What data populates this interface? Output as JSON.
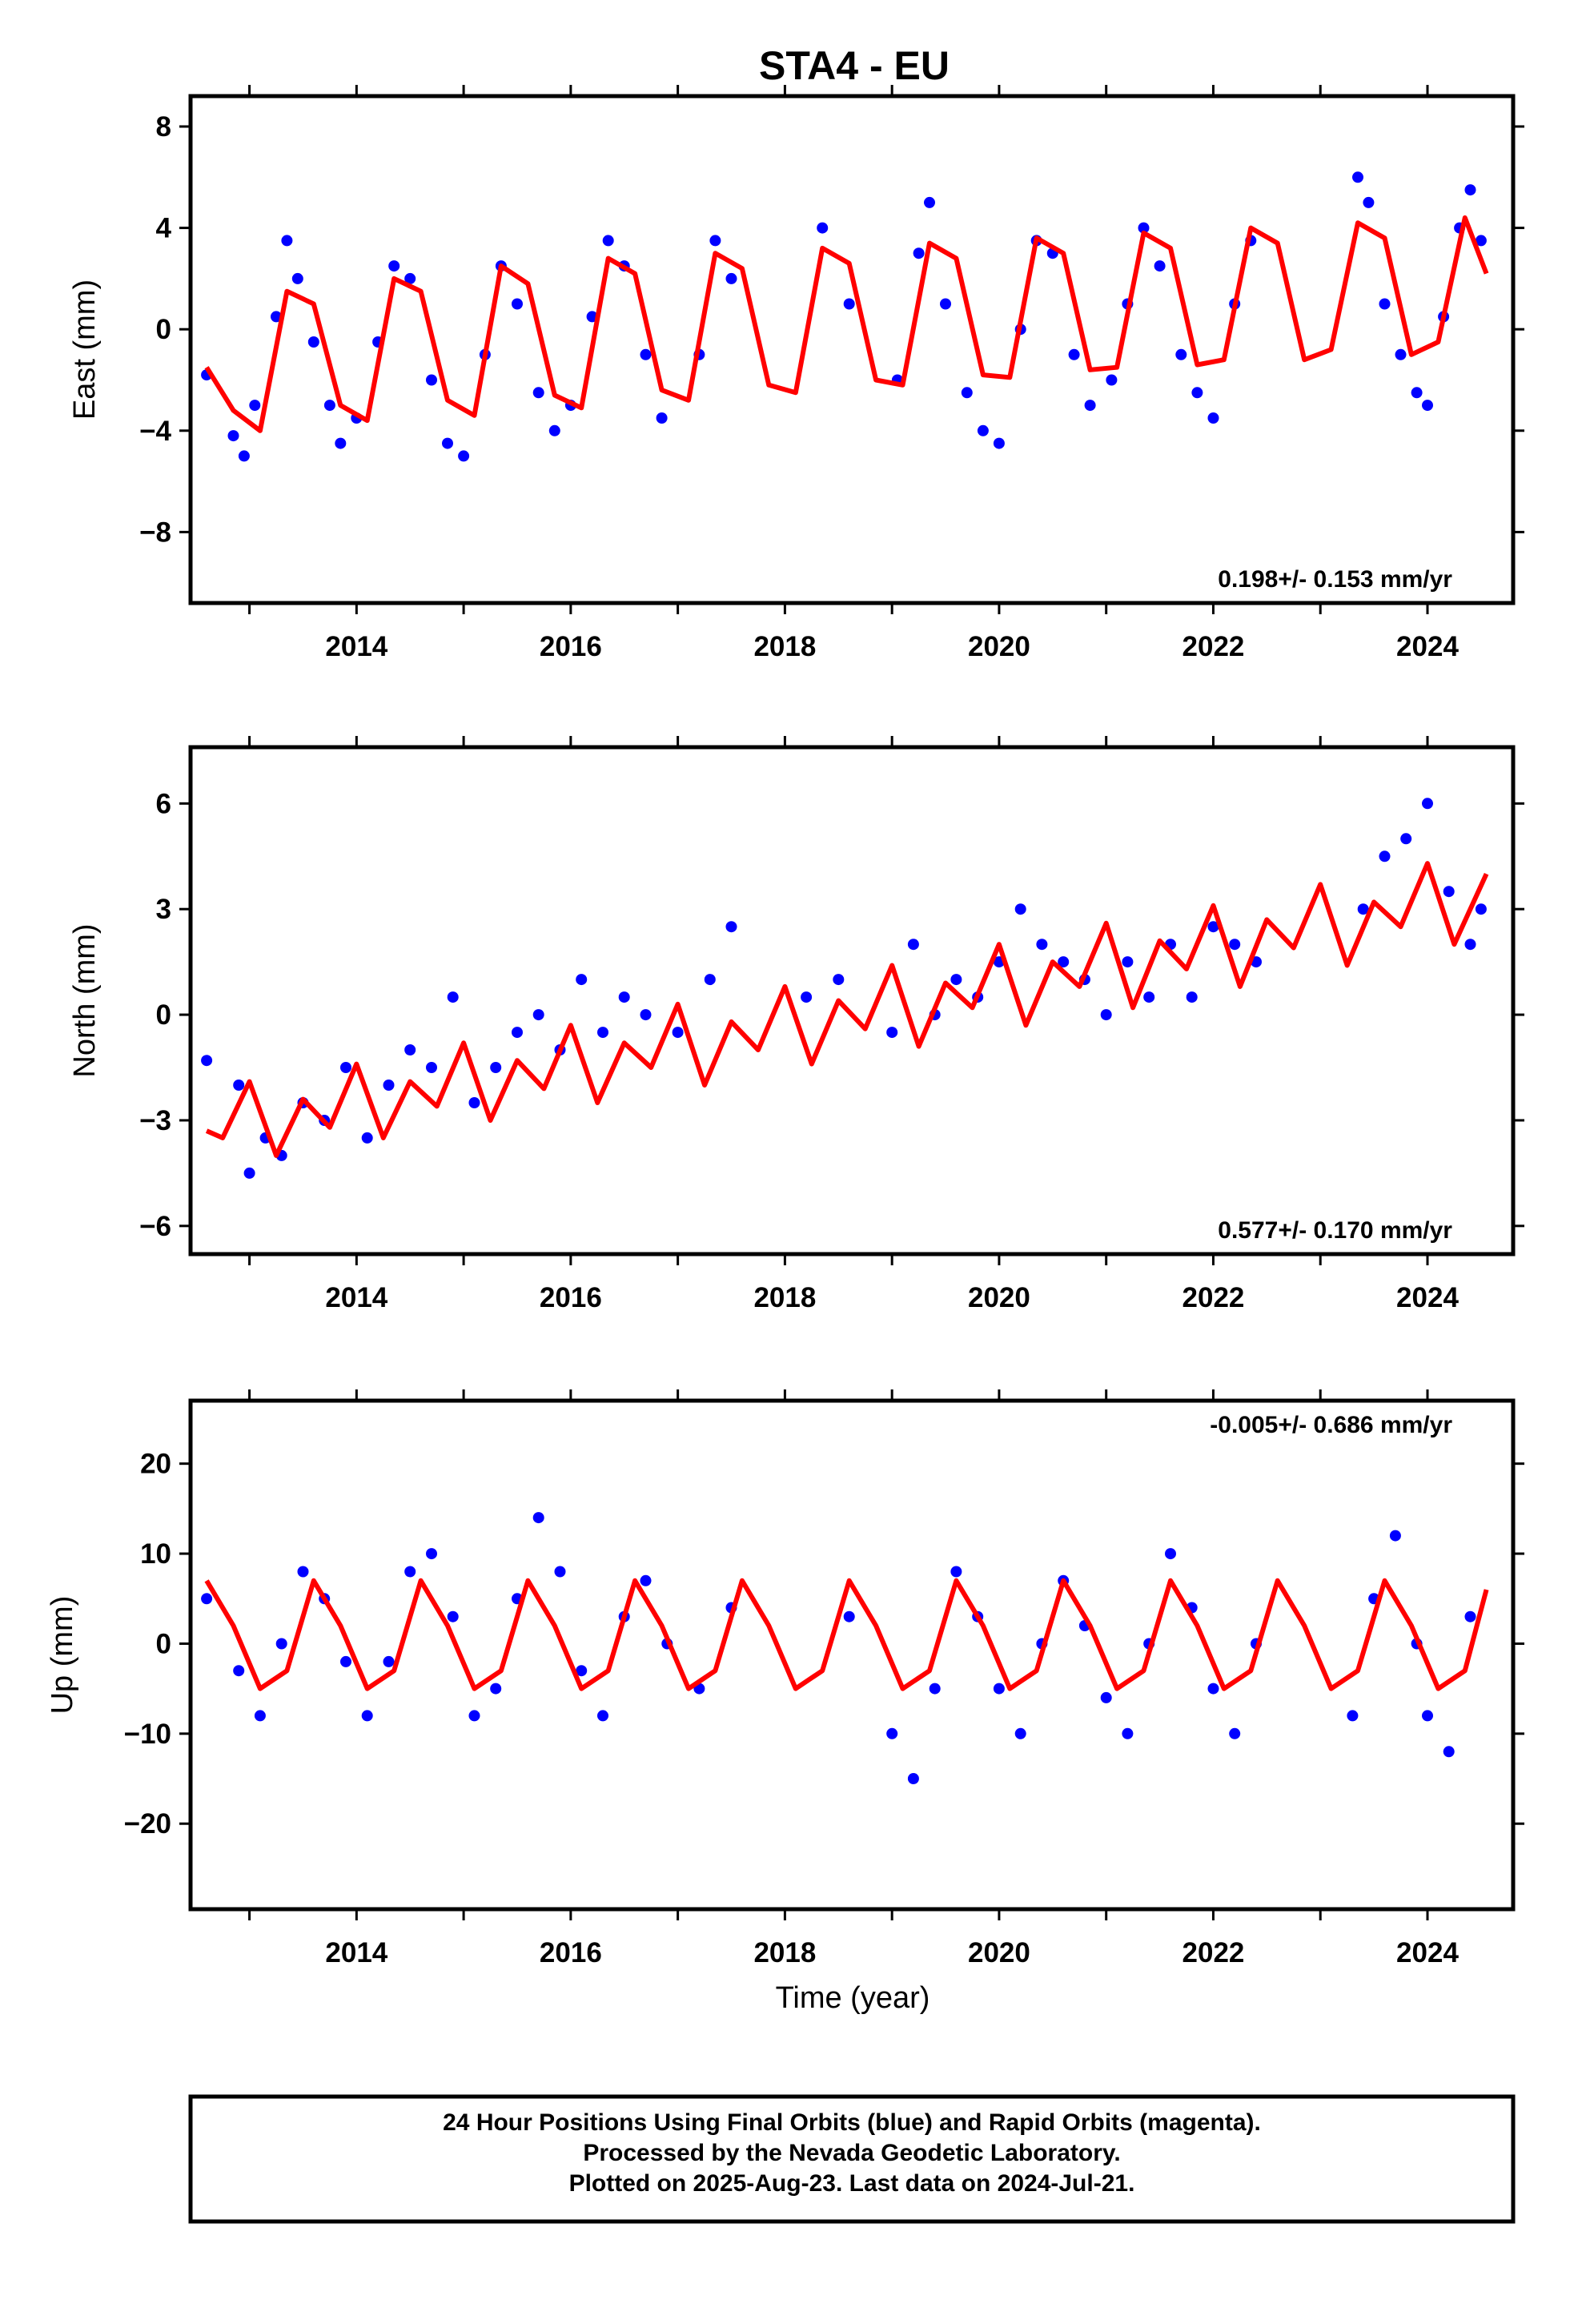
{
  "figure": {
    "title": "STA4 - EU",
    "xlabel": "Time (year)",
    "footer": [
      "24 Hour Positions Using Final Orbits (blue) and Rapid Orbits (magenta).",
      "Processed by the Nevada Geodetic Laboratory.",
      "Plotted on 2025-Aug-23. Last data on 2024-Jul-21."
    ]
  },
  "colors": {
    "final_orbits": "#0000ff",
    "fit": "#ff0000",
    "frame": "#000000"
  },
  "chart_data": [
    {
      "type": "scatter",
      "ylabel": "East (mm)",
      "xlim": [
        2012.45,
        2024.8
      ],
      "ylim": [
        -10.8,
        9.2
      ],
      "yticks": [
        8,
        4,
        0,
        -4,
        -8
      ],
      "ytick_labels": [
        "8",
        "4",
        "0",
        "−4",
        "−8"
      ],
      "xticks": [
        2014,
        2016,
        2018,
        2020,
        2022,
        2024
      ],
      "xtick_labels": [
        "2014",
        "2016",
        "2018",
        "2020",
        "2022",
        "2024"
      ],
      "rate_label": "0.198+/- 0.153 mm/yr",
      "rate_position": "bottom-right",
      "series": [
        {
          "kind": "points",
          "x": [
            2012.6,
            2012.85,
            2012.95,
            2013.05,
            2013.25,
            2013.35,
            2013.45,
            2013.6,
            2013.75,
            2013.85,
            2014.0,
            2014.2,
            2014.35,
            2014.5,
            2014.7,
            2014.85,
            2015.0,
            2015.2,
            2015.35,
            2015.5,
            2015.7,
            2015.85,
            2016.0,
            2016.2,
            2016.35,
            2016.5,
            2016.7,
            2016.85,
            2017.2,
            2017.35,
            2017.5,
            2018.35,
            2018.6,
            2019.05,
            2019.25,
            2019.35,
            2019.5,
            2019.7,
            2019.85,
            2020.0,
            2020.2,
            2020.35,
            2020.5,
            2020.7,
            2020.85,
            2021.05,
            2021.2,
            2021.35,
            2021.5,
            2021.7,
            2021.85,
            2022.0,
            2022.2,
            2022.35,
            2023.35,
            2023.45,
            2023.6,
            2023.75,
            2023.9,
            2024.0,
            2024.15,
            2024.3,
            2024.4,
            2024.5
          ],
          "y": [
            -1.8,
            -4.2,
            -5.0,
            -3.0,
            0.5,
            3.5,
            2.0,
            -0.5,
            -3.0,
            -4.5,
            -3.5,
            -0.5,
            2.5,
            2.0,
            -2.0,
            -4.5,
            -5.0,
            -1.0,
            2.5,
            1.0,
            -2.5,
            -4.0,
            -3.0,
            0.5,
            3.5,
            2.5,
            -1.0,
            -3.5,
            -1.0,
            3.5,
            2.0,
            4.0,
            1.0,
            -2.0,
            3.0,
            5.0,
            1.0,
            -2.5,
            -4.0,
            -4.5,
            0.0,
            3.5,
            3.0,
            -1.0,
            -3.0,
            -2.0,
            1.0,
            4.0,
            2.5,
            -1.0,
            -2.5,
            -3.5,
            1.0,
            3.5,
            6.0,
            5.0,
            1.0,
            -1.0,
            -2.5,
            -3.0,
            0.5,
            4.0,
            5.5,
            3.5
          ]
        },
        {
          "kind": "fit",
          "x": [
            2012.6,
            2012.85,
            2013.1,
            2013.35,
            2013.6,
            2013.85,
            2014.1,
            2014.35,
            2014.6,
            2014.85,
            2015.1,
            2015.35,
            2015.6,
            2015.85,
            2016.1,
            2016.35,
            2016.6,
            2016.85,
            2017.1,
            2017.35,
            2017.6,
            2017.85,
            2018.1,
            2018.35,
            2018.6,
            2018.85,
            2019.1,
            2019.35,
            2019.6,
            2019.85,
            2020.1,
            2020.35,
            2020.6,
            2020.85,
            2021.1,
            2021.35,
            2021.6,
            2021.85,
            2022.1,
            2022.35,
            2022.6,
            2022.85,
            2023.1,
            2023.35,
            2023.6,
            2023.85,
            2024.1,
            2024.35,
            2024.55
          ],
          "y": [
            -1.5,
            -3.2,
            -4.0,
            1.5,
            1.0,
            -3.0,
            -3.6,
            2.0,
            1.5,
            -2.8,
            -3.4,
            2.5,
            1.8,
            -2.6,
            -3.1,
            2.8,
            2.2,
            -2.4,
            -2.8,
            3.0,
            2.4,
            -2.2,
            -2.5,
            3.2,
            2.6,
            -2.0,
            -2.2,
            3.4,
            2.8,
            -1.8,
            -1.9,
            3.6,
            3.0,
            -1.6,
            -1.5,
            3.8,
            3.2,
            -1.4,
            -1.2,
            4.0,
            3.4,
            -1.2,
            -0.8,
            4.2,
            3.6,
            -1.0,
            -0.5,
            4.4,
            2.2
          ]
        }
      ]
    },
    {
      "type": "scatter",
      "ylabel": "North (mm)",
      "xlim": [
        2012.45,
        2024.8
      ],
      "ylim": [
        -6.8,
        7.6
      ],
      "yticks": [
        6,
        3,
        0,
        -3,
        -6
      ],
      "ytick_labels": [
        "6",
        "3",
        "0",
        "−3",
        "−6"
      ],
      "xticks": [
        2014,
        2016,
        2018,
        2020,
        2022,
        2024
      ],
      "xtick_labels": [
        "2014",
        "2016",
        "2018",
        "2020",
        "2022",
        "2024"
      ],
      "rate_label": "0.577+/- 0.170 mm/yr",
      "rate_position": "bottom-right",
      "series": [
        {
          "kind": "points",
          "x": [
            2012.6,
            2012.9,
            2013.0,
            2013.15,
            2013.3,
            2013.5,
            2013.7,
            2013.9,
            2014.1,
            2014.3,
            2014.5,
            2014.7,
            2014.9,
            2015.1,
            2015.3,
            2015.5,
            2015.7,
            2015.9,
            2016.1,
            2016.3,
            2016.5,
            2016.7,
            2017.0,
            2017.3,
            2017.5,
            2018.2,
            2018.5,
            2019.0,
            2019.2,
            2019.4,
            2019.6,
            2019.8,
            2020.0,
            2020.2,
            2020.4,
            2020.6,
            2020.8,
            2021.0,
            2021.2,
            2021.4,
            2021.6,
            2021.8,
            2022.0,
            2022.2,
            2022.4,
            2023.4,
            2023.6,
            2023.8,
            2024.0,
            2024.2,
            2024.4,
            2024.5
          ],
          "y": [
            -1.3,
            -2.0,
            -4.5,
            -3.5,
            -4.0,
            -2.5,
            -3.0,
            -1.5,
            -3.5,
            -2.0,
            -1.0,
            -1.5,
            0.5,
            -2.5,
            -1.5,
            -0.5,
            0.0,
            -1.0,
            1.0,
            -0.5,
            0.5,
            0.0,
            -0.5,
            1.0,
            2.5,
            0.5,
            1.0,
            -0.5,
            2.0,
            0.0,
            1.0,
            0.5,
            1.5,
            3.0,
            2.0,
            1.5,
            1.0,
            0.0,
            1.5,
            0.5,
            2.0,
            0.5,
            2.5,
            2.0,
            1.5,
            3.0,
            4.5,
            5.0,
            6.0,
            3.5,
            2.0,
            3.0
          ]
        },
        {
          "kind": "fit",
          "x": [
            2012.6,
            2012.75,
            2013.0,
            2013.25,
            2013.5,
            2013.75,
            2014.0,
            2014.25,
            2014.5,
            2014.75,
            2015.0,
            2015.25,
            2015.5,
            2015.75,
            2016.0,
            2016.25,
            2016.5,
            2016.75,
            2017.0,
            2017.25,
            2017.5,
            2017.75,
            2018.0,
            2018.25,
            2018.5,
            2018.75,
            2019.0,
            2019.25,
            2019.5,
            2019.75,
            2020.0,
            2020.25,
            2020.5,
            2020.75,
            2021.0,
            2021.25,
            2021.5,
            2021.75,
            2022.0,
            2022.25,
            2022.5,
            2022.75,
            2023.0,
            2023.25,
            2023.5,
            2023.75,
            2024.0,
            2024.25,
            2024.55
          ],
          "y": [
            -3.3,
            -3.5,
            -1.9,
            -4.0,
            -2.4,
            -3.2,
            -1.4,
            -3.5,
            -1.9,
            -2.6,
            -0.8,
            -3.0,
            -1.3,
            -2.1,
            -0.3,
            -2.5,
            -0.8,
            -1.5,
            0.3,
            -2.0,
            -0.2,
            -1.0,
            0.8,
            -1.4,
            0.4,
            -0.4,
            1.4,
            -0.9,
            0.9,
            0.2,
            2.0,
            -0.3,
            1.5,
            0.8,
            2.6,
            0.2,
            2.1,
            1.3,
            3.1,
            0.8,
            2.7,
            1.9,
            3.7,
            1.4,
            3.2,
            2.5,
            4.3,
            2.0,
            4.0
          ]
        }
      ]
    },
    {
      "type": "scatter",
      "ylabel": "Up (mm)",
      "xlim": [
        2012.45,
        2024.8
      ],
      "ylim": [
        -29.5,
        27.0
      ],
      "yticks": [
        20,
        10,
        0,
        -10,
        -20
      ],
      "ytick_labels": [
        "20",
        "10",
        "0",
        "−10",
        "−20"
      ],
      "xticks": [
        2014,
        2016,
        2018,
        2020,
        2022,
        2024
      ],
      "xtick_labels": [
        "2014",
        "2016",
        "2018",
        "2020",
        "2022",
        "2024"
      ],
      "rate_label": "-0.005+/- 0.686 mm/yr",
      "rate_position": "top-right",
      "series": [
        {
          "kind": "points",
          "x": [
            2012.6,
            2012.9,
            2013.1,
            2013.3,
            2013.5,
            2013.7,
            2013.9,
            2014.1,
            2014.3,
            2014.5,
            2014.7,
            2014.9,
            2015.1,
            2015.3,
            2015.5,
            2015.7,
            2015.9,
            2016.1,
            2016.3,
            2016.5,
            2016.7,
            2016.9,
            2017.2,
            2017.5,
            2018.6,
            2019.0,
            2019.2,
            2019.4,
            2019.6,
            2019.8,
            2020.0,
            2020.2,
            2020.4,
            2020.6,
            2020.8,
            2021.0,
            2021.2,
            2021.4,
            2021.6,
            2021.8,
            2022.0,
            2022.2,
            2022.4,
            2023.3,
            2023.5,
            2023.7,
            2023.9,
            2024.0,
            2024.2,
            2024.4
          ],
          "y": [
            5.0,
            -3.0,
            -8.0,
            0.0,
            8.0,
            5.0,
            -2.0,
            -8.0,
            -2.0,
            8.0,
            10.0,
            3.0,
            -8.0,
            -5.0,
            5.0,
            14.0,
            8.0,
            -3.0,
            -8.0,
            3.0,
            7.0,
            0.0,
            -5.0,
            4.0,
            3.0,
            -10.0,
            -15.0,
            -5.0,
            8.0,
            3.0,
            -5.0,
            -10.0,
            0.0,
            7.0,
            2.0,
            -6.0,
            -10.0,
            0.0,
            10.0,
            4.0,
            -5.0,
            -10.0,
            0.0,
            -8.0,
            5.0,
            12.0,
            0.0,
            -8.0,
            -12.0,
            3.0
          ]
        },
        {
          "kind": "fit",
          "x": [
            2012.6,
            2012.85,
            2013.1,
            2013.35,
            2013.6,
            2013.85,
            2014.1,
            2014.35,
            2014.6,
            2014.85,
            2015.1,
            2015.35,
            2015.6,
            2015.85,
            2016.1,
            2016.35,
            2016.6,
            2016.85,
            2017.1,
            2017.35,
            2017.6,
            2017.85,
            2018.1,
            2018.35,
            2018.6,
            2018.85,
            2019.1,
            2019.35,
            2019.6,
            2019.85,
            2020.1,
            2020.35,
            2020.6,
            2020.85,
            2021.1,
            2021.35,
            2021.6,
            2021.85,
            2022.1,
            2022.35,
            2022.6,
            2022.85,
            2023.1,
            2023.35,
            2023.6,
            2023.85,
            2024.1,
            2024.35,
            2024.55
          ],
          "y": [
            7.0,
            2.0,
            -5.0,
            -3.0,
            7.0,
            2.0,
            -5.0,
            -3.0,
            7.0,
            2.0,
            -5.0,
            -3.0,
            7.0,
            2.0,
            -5.0,
            -3.0,
            7.0,
            2.0,
            -5.0,
            -3.0,
            7.0,
            2.0,
            -5.0,
            -3.0,
            7.0,
            2.0,
            -5.0,
            -3.0,
            7.0,
            2.0,
            -5.0,
            -3.0,
            7.0,
            2.0,
            -5.0,
            -3.0,
            7.0,
            2.0,
            -5.0,
            -3.0,
            7.0,
            2.0,
            -5.0,
            -3.0,
            7.0,
            2.0,
            -5.0,
            -3.0,
            6.0
          ]
        }
      ]
    }
  ]
}
